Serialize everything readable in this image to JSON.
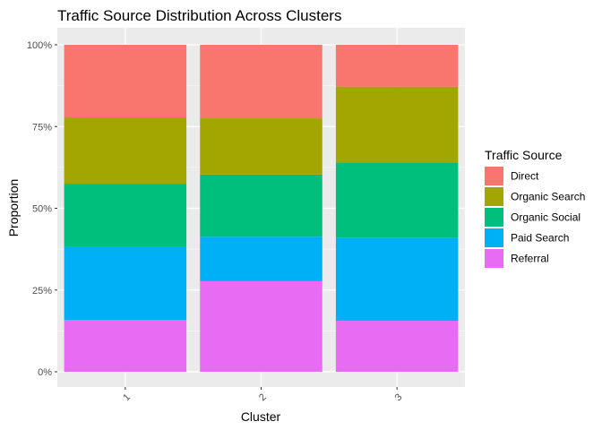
{
  "chart_data": {
    "type": "bar",
    "stacked": true,
    "title": "Traffic Source Distribution Across Clusters",
    "xlabel": "Cluster",
    "ylabel": "Proportion",
    "categories": [
      "1",
      "2",
      "3"
    ],
    "ylim": [
      0,
      1
    ],
    "y_ticks": [
      "0%",
      "25%",
      "50%",
      "75%",
      "100%"
    ],
    "grid": true,
    "legend": {
      "title": "Traffic Source",
      "position": "right"
    },
    "series": [
      {
        "name": "Direct",
        "color": "#F8766D",
        "values": [
          0.222,
          0.225,
          0.128
        ]
      },
      {
        "name": "Organic Search",
        "color": "#A3A500",
        "values": [
          0.204,
          0.172,
          0.232
        ]
      },
      {
        "name": "Organic Social",
        "color": "#00BF7D",
        "values": [
          0.192,
          0.19,
          0.23
        ]
      },
      {
        "name": "Paid Search",
        "color": "#00B0F6",
        "values": [
          0.223,
          0.136,
          0.254
        ]
      },
      {
        "name": "Referral",
        "color": "#E76BF3",
        "values": [
          0.159,
          0.277,
          0.156
        ]
      }
    ]
  }
}
